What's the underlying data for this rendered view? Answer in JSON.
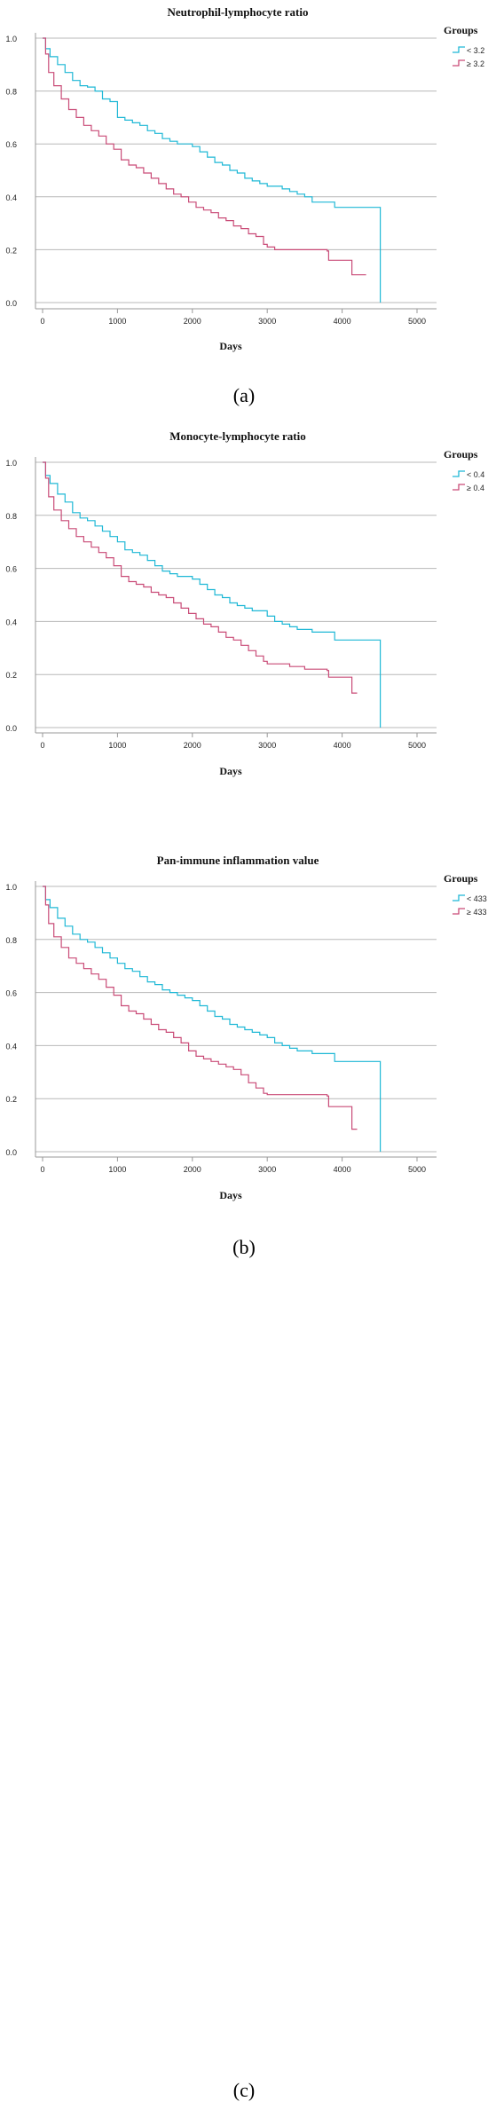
{
  "chart_data": [
    {
      "type": "line",
      "title": "Neutrophil-lymphocyte ratio",
      "xlabel": "Days",
      "ylabel": "",
      "xlim": [
        0,
        5000
      ],
      "ylim": [
        0.0,
        1.0
      ],
      "xticks": [
        0,
        1000,
        2000,
        3000,
        4000,
        5000
      ],
      "yticks": [
        0.0,
        0.2,
        0.4,
        0.6,
        0.8,
        1.0
      ],
      "legend_title": "Groups",
      "legend_position": "right",
      "caption": "(a)",
      "series": [
        {
          "name": "< 3.2",
          "color": "#1fb8d6",
          "points": [
            [
              0,
              1.0
            ],
            [
              40,
              0.96
            ],
            [
              100,
              0.93
            ],
            [
              200,
              0.9
            ],
            [
              300,
              0.87
            ],
            [
              400,
              0.84
            ],
            [
              500,
              0.82
            ],
            [
              600,
              0.815
            ],
            [
              700,
              0.8
            ],
            [
              800,
              0.77
            ],
            [
              900,
              0.76
            ],
            [
              1000,
              0.7
            ],
            [
              1100,
              0.69
            ],
            [
              1200,
              0.68
            ],
            [
              1300,
              0.67
            ],
            [
              1400,
              0.65
            ],
            [
              1500,
              0.64
            ],
            [
              1600,
              0.62
            ],
            [
              1700,
              0.61
            ],
            [
              1800,
              0.6
            ],
            [
              1900,
              0.6
            ],
            [
              2000,
              0.59
            ],
            [
              2100,
              0.57
            ],
            [
              2200,
              0.55
            ],
            [
              2300,
              0.53
            ],
            [
              2400,
              0.52
            ],
            [
              2500,
              0.5
            ],
            [
              2600,
              0.49
            ],
            [
              2700,
              0.47
            ],
            [
              2800,
              0.46
            ],
            [
              2900,
              0.45
            ],
            [
              3000,
              0.44
            ],
            [
              3100,
              0.44
            ],
            [
              3200,
              0.43
            ],
            [
              3300,
              0.42
            ],
            [
              3400,
              0.41
            ],
            [
              3500,
              0.4
            ],
            [
              3600,
              0.38
            ],
            [
              3900,
              0.36
            ],
            [
              4510,
              0.36
            ],
            [
              4510,
              0.0
            ]
          ]
        },
        {
          "name": "≥ 3.2",
          "color": "#c94b77",
          "points": [
            [
              0,
              1.0
            ],
            [
              40,
              0.94
            ],
            [
              80,
              0.87
            ],
            [
              150,
              0.82
            ],
            [
              250,
              0.77
            ],
            [
              350,
              0.73
            ],
            [
              450,
              0.7
            ],
            [
              550,
              0.67
            ],
            [
              650,
              0.65
            ],
            [
              750,
              0.63
            ],
            [
              850,
              0.6
            ],
            [
              950,
              0.58
            ],
            [
              1050,
              0.54
            ],
            [
              1150,
              0.52
            ],
            [
              1250,
              0.51
            ],
            [
              1350,
              0.49
            ],
            [
              1450,
              0.47
            ],
            [
              1550,
              0.45
            ],
            [
              1650,
              0.43
            ],
            [
              1750,
              0.41
            ],
            [
              1850,
              0.4
            ],
            [
              1950,
              0.38
            ],
            [
              2050,
              0.36
            ],
            [
              2150,
              0.35
            ],
            [
              2250,
              0.34
            ],
            [
              2350,
              0.32
            ],
            [
              2450,
              0.31
            ],
            [
              2550,
              0.29
            ],
            [
              2650,
              0.28
            ],
            [
              2750,
              0.26
            ],
            [
              2850,
              0.25
            ],
            [
              2950,
              0.22
            ],
            [
              3000,
              0.21
            ],
            [
              3100,
              0.2
            ],
            [
              3500,
              0.2
            ],
            [
              3800,
              0.195
            ],
            [
              3820,
              0.16
            ],
            [
              4100,
              0.16
            ],
            [
              4130,
              0.105
            ],
            [
              4320,
              0.105
            ]
          ]
        }
      ]
    },
    {
      "type": "line",
      "title": "Monocyte-lymphocyte ratio",
      "xlabel": "Days",
      "ylabel": "",
      "xlim": [
        0,
        5000
      ],
      "ylim": [
        0.0,
        1.0
      ],
      "xticks": [
        0,
        1000,
        2000,
        3000,
        4000,
        5000
      ],
      "yticks": [
        0.0,
        0.2,
        0.4,
        0.6,
        0.8,
        1.0
      ],
      "legend_title": "Groups",
      "legend_position": "right",
      "caption": "(b)",
      "series": [
        {
          "name": "< 0.4",
          "color": "#1fb8d6",
          "points": [
            [
              0,
              1.0
            ],
            [
              40,
              0.95
            ],
            [
              100,
              0.92
            ],
            [
              200,
              0.88
            ],
            [
              300,
              0.85
            ],
            [
              400,
              0.81
            ],
            [
              500,
              0.79
            ],
            [
              600,
              0.78
            ],
            [
              700,
              0.76
            ],
            [
              800,
              0.74
            ],
            [
              900,
              0.72
            ],
            [
              1000,
              0.7
            ],
            [
              1100,
              0.67
            ],
            [
              1200,
              0.66
            ],
            [
              1300,
              0.65
            ],
            [
              1400,
              0.63
            ],
            [
              1500,
              0.61
            ],
            [
              1600,
              0.59
            ],
            [
              1700,
              0.58
            ],
            [
              1800,
              0.57
            ],
            [
              1900,
              0.57
            ],
            [
              2000,
              0.56
            ],
            [
              2100,
              0.54
            ],
            [
              2200,
              0.52
            ],
            [
              2300,
              0.5
            ],
            [
              2400,
              0.49
            ],
            [
              2500,
              0.47
            ],
            [
              2600,
              0.46
            ],
            [
              2700,
              0.45
            ],
            [
              2800,
              0.44
            ],
            [
              2900,
              0.44
            ],
            [
              3000,
              0.42
            ],
            [
              3100,
              0.4
            ],
            [
              3200,
              0.39
            ],
            [
              3300,
              0.38
            ],
            [
              3400,
              0.37
            ],
            [
              3600,
              0.36
            ],
            [
              3900,
              0.33
            ],
            [
              4510,
              0.33
            ],
            [
              4510,
              0.0
            ]
          ]
        },
        {
          "name": "≥ 0.4",
          "color": "#c94b77",
          "points": [
            [
              0,
              1.0
            ],
            [
              40,
              0.94
            ],
            [
              80,
              0.87
            ],
            [
              150,
              0.82
            ],
            [
              250,
              0.78
            ],
            [
              350,
              0.75
            ],
            [
              450,
              0.72
            ],
            [
              550,
              0.7
            ],
            [
              650,
              0.68
            ],
            [
              750,
              0.66
            ],
            [
              850,
              0.64
            ],
            [
              950,
              0.61
            ],
            [
              1050,
              0.57
            ],
            [
              1150,
              0.55
            ],
            [
              1250,
              0.54
            ],
            [
              1350,
              0.53
            ],
            [
              1450,
              0.51
            ],
            [
              1550,
              0.5
            ],
            [
              1650,
              0.49
            ],
            [
              1750,
              0.47
            ],
            [
              1850,
              0.45
            ],
            [
              1950,
              0.43
            ],
            [
              2050,
              0.41
            ],
            [
              2150,
              0.39
            ],
            [
              2250,
              0.38
            ],
            [
              2350,
              0.36
            ],
            [
              2450,
              0.34
            ],
            [
              2550,
              0.33
            ],
            [
              2650,
              0.31
            ],
            [
              2750,
              0.29
            ],
            [
              2850,
              0.27
            ],
            [
              2950,
              0.25
            ],
            [
              3000,
              0.24
            ],
            [
              3300,
              0.23
            ],
            [
              3500,
              0.22
            ],
            [
              3800,
              0.215
            ],
            [
              3820,
              0.19
            ],
            [
              4100,
              0.19
            ],
            [
              4130,
              0.13
            ],
            [
              4200,
              0.13
            ]
          ]
        }
      ]
    },
    {
      "type": "line",
      "title": "Pan-immune inflammation value",
      "xlabel": "Days",
      "ylabel": "",
      "xlim": [
        0,
        5000
      ],
      "ylim": [
        0.0,
        1.0
      ],
      "xticks": [
        0,
        1000,
        2000,
        3000,
        4000,
        5000
      ],
      "yticks": [
        0.0,
        0.2,
        0.4,
        0.6,
        0.8,
        1.0
      ],
      "legend_title": "Groups",
      "legend_position": "right",
      "caption": "(c)",
      "series": [
        {
          "name": "< 433",
          "color": "#1fb8d6",
          "points": [
            [
              0,
              1.0
            ],
            [
              40,
              0.95
            ],
            [
              100,
              0.92
            ],
            [
              200,
              0.88
            ],
            [
              300,
              0.85
            ],
            [
              400,
              0.82
            ],
            [
              500,
              0.8
            ],
            [
              600,
              0.79
            ],
            [
              700,
              0.77
            ],
            [
              800,
              0.75
            ],
            [
              900,
              0.73
            ],
            [
              1000,
              0.71
            ],
            [
              1100,
              0.69
            ],
            [
              1200,
              0.68
            ],
            [
              1300,
              0.66
            ],
            [
              1400,
              0.64
            ],
            [
              1500,
              0.63
            ],
            [
              1600,
              0.61
            ],
            [
              1700,
              0.6
            ],
            [
              1800,
              0.59
            ],
            [
              1900,
              0.58
            ],
            [
              2000,
              0.57
            ],
            [
              2100,
              0.55
            ],
            [
              2200,
              0.53
            ],
            [
              2300,
              0.51
            ],
            [
              2400,
              0.5
            ],
            [
              2500,
              0.48
            ],
            [
              2600,
              0.47
            ],
            [
              2700,
              0.46
            ],
            [
              2800,
              0.45
            ],
            [
              2900,
              0.44
            ],
            [
              3000,
              0.43
            ],
            [
              3100,
              0.41
            ],
            [
              3200,
              0.4
            ],
            [
              3300,
              0.39
            ],
            [
              3400,
              0.38
            ],
            [
              3600,
              0.37
            ],
            [
              3900,
              0.34
            ],
            [
              4510,
              0.34
            ],
            [
              4510,
              0.0
            ]
          ]
        },
        {
          "name": "≥ 433",
          "color": "#c94b77",
          "points": [
            [
              0,
              1.0
            ],
            [
              40,
              0.93
            ],
            [
              80,
              0.86
            ],
            [
              150,
              0.81
            ],
            [
              250,
              0.77
            ],
            [
              350,
              0.73
            ],
            [
              450,
              0.71
            ],
            [
              550,
              0.69
            ],
            [
              650,
              0.67
            ],
            [
              750,
              0.65
            ],
            [
              850,
              0.62
            ],
            [
              950,
              0.59
            ],
            [
              1050,
              0.55
            ],
            [
              1150,
              0.53
            ],
            [
              1250,
              0.52
            ],
            [
              1350,
              0.5
            ],
            [
              1450,
              0.48
            ],
            [
              1550,
              0.46
            ],
            [
              1650,
              0.45
            ],
            [
              1750,
              0.43
            ],
            [
              1850,
              0.41
            ],
            [
              1950,
              0.38
            ],
            [
              2050,
              0.36
            ],
            [
              2150,
              0.35
            ],
            [
              2250,
              0.34
            ],
            [
              2350,
              0.33
            ],
            [
              2450,
              0.32
            ],
            [
              2550,
              0.31
            ],
            [
              2650,
              0.29
            ],
            [
              2750,
              0.26
            ],
            [
              2850,
              0.24
            ],
            [
              2950,
              0.22
            ],
            [
              3000,
              0.215
            ],
            [
              3500,
              0.215
            ],
            [
              3800,
              0.21
            ],
            [
              3820,
              0.17
            ],
            [
              4100,
              0.17
            ],
            [
              4130,
              0.085
            ],
            [
              4200,
              0.085
            ]
          ]
        }
      ]
    }
  ]
}
